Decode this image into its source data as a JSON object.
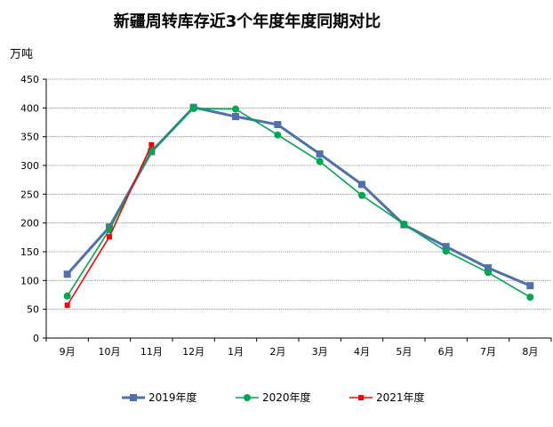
{
  "chart_data": {
    "type": "line",
    "title": "新疆周转库存近3个年度年度同期对比",
    "ylabel": "万吨",
    "categories": [
      "9月",
      "10月",
      "11月",
      "12月",
      "1月",
      "2月",
      "3月",
      "4月",
      "5月",
      "6月",
      "7月",
      "8月"
    ],
    "ylim": [
      0,
      450
    ],
    "yticks": [
      0,
      50,
      100,
      150,
      200,
      250,
      300,
      350,
      400,
      450
    ],
    "grid": true,
    "legend_position": "bottom",
    "series": [
      {
        "name": "2019年度",
        "color": "#4F6FAF",
        "marker": "square",
        "values": [
          111,
          193,
          324,
          401,
          385,
          371,
          320,
          267,
          197,
          159,
          122,
          91
        ]
      },
      {
        "name": "2020年度",
        "color": "#00A651",
        "marker": "circle",
        "values": [
          73,
          188,
          326,
          399,
          398,
          353,
          307,
          248,
          198,
          151,
          114,
          71
        ]
      },
      {
        "name": "2021年度",
        "color": "#FF0000",
        "marker": "square",
        "values": [
          57,
          176,
          336,
          null,
          null,
          null,
          null,
          null,
          null,
          null,
          null,
          null
        ]
      }
    ]
  }
}
